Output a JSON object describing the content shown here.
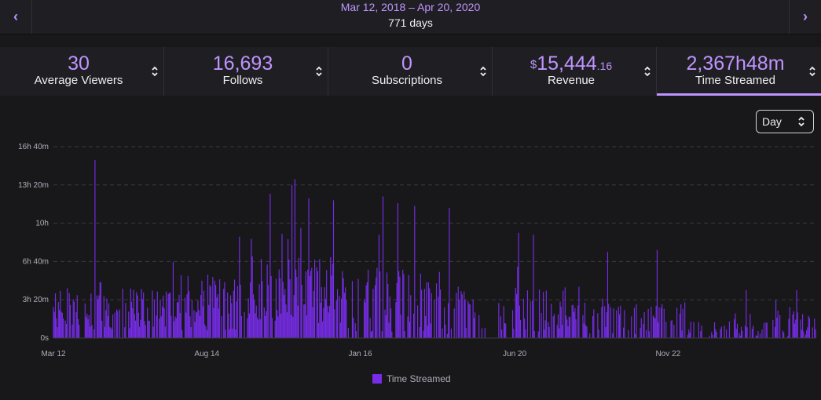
{
  "header": {
    "date_range": "Mar 12, 2018 – Apr 20, 2020",
    "days": "771 days",
    "prev_icon": "chevron-left-icon",
    "next_icon": "chevron-right-icon"
  },
  "stats": {
    "avg_viewers": {
      "value": "30",
      "label": "Average Viewers"
    },
    "follows": {
      "value": "16,693",
      "label": "Follows"
    },
    "subscriptions": {
      "value": "0",
      "label": "Subscriptions"
    },
    "revenue": {
      "currency": "$",
      "value": "15,444",
      "cents": ".16",
      "label": "Revenue"
    },
    "time_streamed": {
      "value": "2,367h48m",
      "label": "Time Streamed"
    }
  },
  "interval": {
    "selected": "Day"
  },
  "colors": {
    "accent": "#bf94ff",
    "bar": "#772ce8",
    "background": "#18181b",
    "panel": "#1f1f23"
  },
  "chart_data": {
    "type": "bar",
    "title": "",
    "series_name": "Time Streamed",
    "y_unit": "minutes",
    "ylim": [
      0,
      1000
    ],
    "y_ticks": [
      {
        "value": 0,
        "label": "0s"
      },
      {
        "value": 200,
        "label": "3h 20m"
      },
      {
        "value": 400,
        "label": "6h 40m"
      },
      {
        "value": 600,
        "label": "10h"
      },
      {
        "value": 800,
        "label": "13h 20m"
      },
      {
        "value": 1000,
        "label": "16h 40m"
      }
    ],
    "x_ticks": [
      {
        "index": 0,
        "label": "Mar 12"
      },
      {
        "index": 155,
        "label": "Aug 14"
      },
      {
        "index": 310,
        "label": "Jan 16"
      },
      {
        "index": 466,
        "label": "Jun 20"
      },
      {
        "index": 621,
        "label": "Nov 22"
      }
    ],
    "day_count": 771,
    "grid": true,
    "legend": "bottom",
    "segments": [
      {
        "from": 0,
        "to": 120,
        "avg": 150,
        "spread": 110,
        "density": 0.75
      },
      {
        "from": 120,
        "to": 200,
        "avg": 190,
        "spread": 150,
        "density": 0.8
      },
      {
        "from": 200,
        "to": 290,
        "avg": 250,
        "spread": 180,
        "density": 0.85
      },
      {
        "from": 290,
        "to": 360,
        "avg": 200,
        "spread": 170,
        "density": 0.75
      },
      {
        "from": 360,
        "to": 425,
        "avg": 160,
        "spread": 140,
        "density": 0.7
      },
      {
        "from": 425,
        "to": 440,
        "avg": 80,
        "spread": 60,
        "density": 0.3
      },
      {
        "from": 440,
        "to": 450,
        "avg": 0,
        "spread": 0,
        "density": 0
      },
      {
        "from": 450,
        "to": 540,
        "avg": 150,
        "spread": 120,
        "density": 0.65
      },
      {
        "from": 540,
        "to": 640,
        "avg": 110,
        "spread": 90,
        "density": 0.55
      },
      {
        "from": 640,
        "to": 700,
        "avg": 50,
        "spread": 40,
        "density": 0.4
      },
      {
        "from": 700,
        "to": 771,
        "avg": 70,
        "spread": 60,
        "density": 0.5
      }
    ],
    "peaks": [
      {
        "index": 42,
        "value": 930
      },
      {
        "index": 244,
        "value": 830
      },
      {
        "index": 241,
        "value": 800
      },
      {
        "index": 219,
        "value": 755
      },
      {
        "index": 258,
        "value": 730
      },
      {
        "index": 333,
        "value": 740
      },
      {
        "index": 348,
        "value": 705
      },
      {
        "index": 283,
        "value": 720
      },
      {
        "index": 365,
        "value": 690
      },
      {
        "index": 188,
        "value": 530
      },
      {
        "index": 400,
        "value": 680
      },
      {
        "index": 470,
        "value": 550
      },
      {
        "index": 485,
        "value": 540
      },
      {
        "index": 560,
        "value": 450
      },
      {
        "index": 610,
        "value": 460
      },
      {
        "index": 700,
        "value": 250
      },
      {
        "index": 751,
        "value": 250
      }
    ]
  },
  "legend": {
    "label": "Time Streamed"
  }
}
